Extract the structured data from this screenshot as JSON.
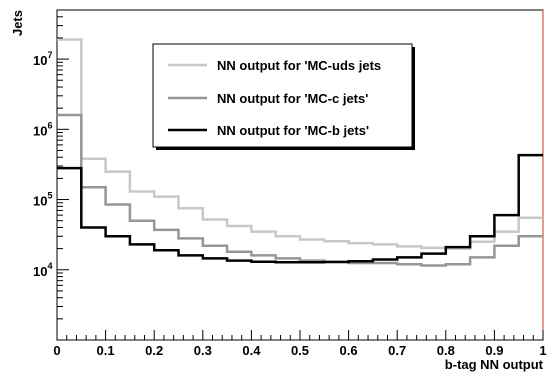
{
  "chart_data": {
    "type": "line",
    "subtype": "step-histogram",
    "title": "",
    "xlabel": "b-tag NN output",
    "ylabel": "Jets",
    "xlim": [
      0,
      1
    ],
    "ylim": [
      1000,
      50000000
    ],
    "yscale": "log",
    "grid": false,
    "legend_position": "top-center",
    "x_ticks": [
      "0",
      "0.1",
      "0.2",
      "0.3",
      "0.4",
      "0.5",
      "0.6",
      "0.7",
      "0.8",
      "0.9",
      "1"
    ],
    "y_ticks": [
      {
        "base": "10",
        "exp": "4",
        "value": 10000
      },
      {
        "base": "10",
        "exp": "5",
        "value": 100000
      },
      {
        "base": "10",
        "exp": "6",
        "value": 1000000
      },
      {
        "base": "10",
        "exp": "7",
        "value": 10000000
      }
    ],
    "bin_edges": [
      0,
      0.05,
      0.1,
      0.15,
      0.2,
      0.25,
      0.3,
      0.35,
      0.4,
      0.45,
      0.5,
      0.55,
      0.6,
      0.65,
      0.7,
      0.75,
      0.8,
      0.85,
      0.9,
      0.95,
      1.0
    ],
    "series": [
      {
        "name": "NN output for 'MC-uds jets",
        "color": "#c8c8c8",
        "values": [
          19000000,
          380000,
          250000,
          130000,
          110000,
          75000,
          52000,
          42000,
          35000,
          30000,
          27000,
          25500,
          24000,
          23000,
          21500,
          20500,
          20000,
          25000,
          35000,
          55000
        ]
      },
      {
        "name": "NN output for 'MC-c jets'",
        "color": "#969696",
        "values": [
          1600000,
          150000,
          85000,
          50000,
          37000,
          28000,
          22000,
          18000,
          16000,
          14500,
          13500,
          13000,
          12500,
          12500,
          12000,
          11500,
          12000,
          15000,
          22000,
          30000
        ]
      },
      {
        "name": "NN output for 'MC-b jets'",
        "color": "#000000",
        "values": [
          280000,
          40000,
          30000,
          23000,
          19000,
          16000,
          14500,
          13500,
          13000,
          12800,
          12800,
          12900,
          13200,
          14000,
          15000,
          17000,
          21000,
          30000,
          60000,
          430000
        ]
      }
    ]
  }
}
